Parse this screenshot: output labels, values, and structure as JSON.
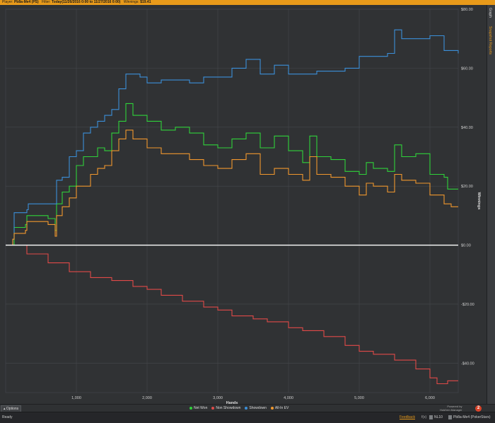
{
  "topbar": {
    "player_label": "Player:",
    "player_value": "Pb8a-Me4 (PS)",
    "filter_label": "Filter:",
    "filter_value": "Today(11/26/2016 0:00 to 11/27/2016 0:00)",
    "winnings_label": "Winnings:",
    "winnings_value": "$19.41"
  },
  "right_panel": {
    "tabs": [
      "Graph",
      "Snapshot Reports"
    ]
  },
  "legend_bar": {
    "options_label": "Options",
    "powered_line1": "Powered by",
    "powered_line2": "Hold'em Manager"
  },
  "status_bar": {
    "ready": "Ready",
    "feedback": "Feedback",
    "fx": "f(x)",
    "stake": "NL10",
    "player": "Pb8a-Me4 (PokerStars)"
  },
  "colors": {
    "net_won": "#2fd23a",
    "non_showdown": "#e04a48",
    "showdown": "#3b8fd9",
    "all_in_ev": "#f0972d",
    "zero_line": "#ffffff",
    "grid": "#45484c",
    "accent": "#e89a1a"
  },
  "chart_data": {
    "type": "line",
    "xlabel": "Hands",
    "ylabel": "Winnings",
    "xlim": [
      0,
      6400
    ],
    "ylim": [
      -50,
      80
    ],
    "x_ticks": [
      1000,
      2000,
      3000,
      4000,
      5000,
      6000
    ],
    "x_tick_labels": [
      "1,000",
      "2,000",
      "3,000",
      "4,000",
      "5,000",
      "6,000"
    ],
    "y_ticks": [
      80,
      60,
      40,
      20,
      0,
      -20,
      -40
    ],
    "y_tick_labels": [
      "$80.00",
      "$60.00",
      "$40.00",
      "$20.00",
      "$0.00",
      "-$20.00",
      "-$40.00"
    ],
    "grid": true,
    "legend_position": "bottom",
    "series": [
      {
        "name": "Net Won",
        "color": "#2fd23a",
        "points": [
          [
            0,
            0
          ],
          [
            100,
            0
          ],
          [
            120,
            6
          ],
          [
            280,
            7
          ],
          [
            300,
            10
          ],
          [
            600,
            9
          ],
          [
            700,
            5
          ],
          [
            720,
            14
          ],
          [
            800,
            18
          ],
          [
            900,
            20
          ],
          [
            1000,
            27
          ],
          [
            1100,
            30
          ],
          [
            1300,
            33
          ],
          [
            1400,
            32
          ],
          [
            1500,
            38
          ],
          [
            1600,
            42
          ],
          [
            1700,
            48
          ],
          [
            1800,
            44
          ],
          [
            2000,
            42
          ],
          [
            2200,
            39
          ],
          [
            2400,
            40
          ],
          [
            2600,
            38
          ],
          [
            2800,
            34
          ],
          [
            3000,
            33
          ],
          [
            3200,
            36
          ],
          [
            3400,
            38
          ],
          [
            3600,
            33
          ],
          [
            3800,
            37
          ],
          [
            4000,
            32
          ],
          [
            4100,
            32
          ],
          [
            4200,
            28
          ],
          [
            4300,
            37
          ],
          [
            4400,
            30
          ],
          [
            4600,
            29
          ],
          [
            4800,
            25
          ],
          [
            5000,
            24
          ],
          [
            5100,
            28
          ],
          [
            5200,
            26
          ],
          [
            5400,
            25
          ],
          [
            5500,
            34
          ],
          [
            5600,
            30
          ],
          [
            5800,
            31
          ],
          [
            6000,
            24
          ],
          [
            6200,
            23
          ],
          [
            6250,
            19
          ],
          [
            6400,
            19
          ]
        ]
      },
      {
        "name": "Non Showdown",
        "color": "#e04a48",
        "points": [
          [
            0,
            0
          ],
          [
            300,
            -3
          ],
          [
            600,
            -6
          ],
          [
            900,
            -9
          ],
          [
            1200,
            -11
          ],
          [
            1500,
            -12
          ],
          [
            1800,
            -14
          ],
          [
            2000,
            -15
          ],
          [
            2200,
            -17
          ],
          [
            2500,
            -19
          ],
          [
            2800,
            -21
          ],
          [
            3000,
            -22
          ],
          [
            3200,
            -24
          ],
          [
            3500,
            -25
          ],
          [
            3700,
            -26
          ],
          [
            4000,
            -28
          ],
          [
            4200,
            -29
          ],
          [
            4500,
            -31
          ],
          [
            4800,
            -34
          ],
          [
            5000,
            -36
          ],
          [
            5200,
            -37
          ],
          [
            5500,
            -39
          ],
          [
            5800,
            -42
          ],
          [
            6000,
            -45
          ],
          [
            6100,
            -47
          ],
          [
            6250,
            -46
          ],
          [
            6400,
            -46
          ]
        ]
      },
      {
        "name": "Showdown",
        "color": "#3b8fd9",
        "points": [
          [
            0,
            0
          ],
          [
            100,
            2
          ],
          [
            120,
            11
          ],
          [
            300,
            12
          ],
          [
            320,
            14
          ],
          [
            600,
            14
          ],
          [
            720,
            22
          ],
          [
            800,
            23
          ],
          [
            900,
            30
          ],
          [
            1000,
            32
          ],
          [
            1100,
            38
          ],
          [
            1200,
            40
          ],
          [
            1300,
            42
          ],
          [
            1400,
            44
          ],
          [
            1500,
            46
          ],
          [
            1600,
            53
          ],
          [
            1700,
            58
          ],
          [
            1900,
            57
          ],
          [
            2000,
            55
          ],
          [
            2200,
            56
          ],
          [
            2400,
            56
          ],
          [
            2600,
            55
          ],
          [
            2800,
            57
          ],
          [
            3000,
            57
          ],
          [
            3200,
            60
          ],
          [
            3400,
            63
          ],
          [
            3600,
            58
          ],
          [
            3800,
            61
          ],
          [
            4000,
            58
          ],
          [
            4200,
            58
          ],
          [
            4400,
            59
          ],
          [
            4600,
            59
          ],
          [
            4800,
            60
          ],
          [
            5000,
            64
          ],
          [
            5200,
            64
          ],
          [
            5400,
            65
          ],
          [
            5500,
            73
          ],
          [
            5600,
            70
          ],
          [
            5800,
            70
          ],
          [
            6000,
            71
          ],
          [
            6200,
            66
          ],
          [
            6400,
            65
          ]
        ]
      },
      {
        "name": "All-In EV",
        "color": "#f0972d",
        "points": [
          [
            0,
            0
          ],
          [
            100,
            2
          ],
          [
            120,
            4
          ],
          [
            280,
            5
          ],
          [
            300,
            8
          ],
          [
            600,
            7
          ],
          [
            700,
            3
          ],
          [
            720,
            10
          ],
          [
            800,
            13
          ],
          [
            900,
            16
          ],
          [
            1000,
            20
          ],
          [
            1200,
            24
          ],
          [
            1300,
            26
          ],
          [
            1400,
            27
          ],
          [
            1500,
            32
          ],
          [
            1600,
            36
          ],
          [
            1700,
            39
          ],
          [
            1800,
            36
          ],
          [
            2000,
            33
          ],
          [
            2200,
            31
          ],
          [
            2400,
            31
          ],
          [
            2600,
            29
          ],
          [
            2800,
            27
          ],
          [
            3000,
            26
          ],
          [
            3200,
            29
          ],
          [
            3400,
            31
          ],
          [
            3600,
            24
          ],
          [
            3800,
            26
          ],
          [
            4000,
            24
          ],
          [
            4200,
            22
          ],
          [
            4300,
            30
          ],
          [
            4400,
            24
          ],
          [
            4600,
            23
          ],
          [
            4800,
            20
          ],
          [
            5000,
            17
          ],
          [
            5100,
            21
          ],
          [
            5200,
            20
          ],
          [
            5400,
            18
          ],
          [
            5500,
            24
          ],
          [
            5600,
            22
          ],
          [
            5800,
            21
          ],
          [
            6000,
            17
          ],
          [
            6200,
            14
          ],
          [
            6300,
            13
          ],
          [
            6400,
            13
          ]
        ]
      }
    ]
  }
}
